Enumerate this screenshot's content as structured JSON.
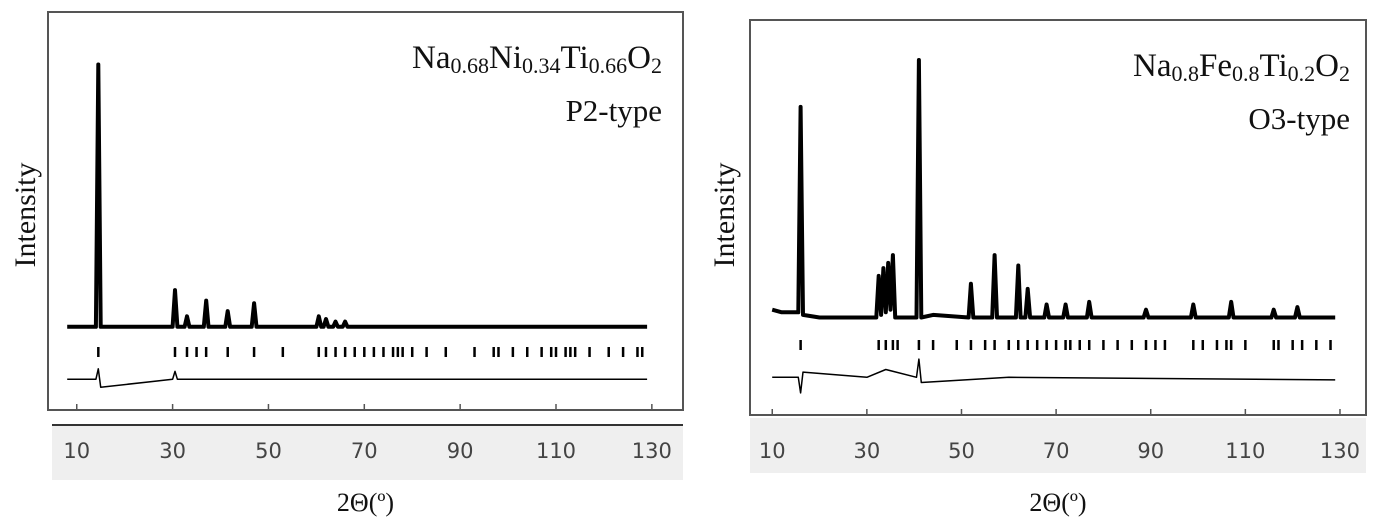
{
  "chart_data": [
    {
      "type": "line",
      "title": "Na0.68Ni0.34Ti0.66O2",
      "subtitle": "P2-type",
      "x_label": "2Θ(º)",
      "y_label": "Intensity",
      "xlim": [
        4,
        136.5
      ],
      "ylim": [
        -31.7,
        120
      ],
      "xticks": [
        10,
        30,
        50,
        70,
        90,
        110,
        130
      ],
      "color": "#000000",
      "x": [
        8,
        14,
        14.5,
        15,
        30,
        30.5,
        31,
        32.5,
        33,
        33.5,
        36.5,
        37,
        37.5,
        41,
        41.5,
        42,
        46.5,
        47,
        47.5,
        60,
        60.5,
        61,
        61.5,
        62,
        62.5,
        63.5,
        64,
        64.5,
        65.5,
        66,
        66.5,
        129
      ],
      "values": [
        0,
        0,
        100,
        0,
        0,
        14,
        0,
        0,
        4,
        0,
        0,
        10,
        0,
        0,
        6,
        0,
        0,
        9,
        0,
        0,
        4,
        0,
        0,
        3,
        0,
        0,
        2,
        0,
        0,
        2,
        0,
        0
      ],
      "reflections": [
        14.5,
        30.5,
        33,
        35,
        37,
        41.5,
        47,
        53,
        60.5,
        62,
        64,
        66,
        68,
        70,
        72,
        74,
        76,
        77,
        78,
        80,
        83,
        87,
        93,
        97,
        98,
        101,
        104,
        107,
        109,
        110,
        112,
        113,
        114,
        117,
        121,
        124,
        127,
        128
      ],
      "difference_x": [
        8,
        14,
        14.5,
        15,
        30,
        30.5,
        31,
        60,
        129
      ],
      "difference": [
        -20,
        -20,
        -16,
        -23,
        -20,
        -17,
        -20,
        -20,
        -20
      ]
    },
    {
      "type": "line",
      "title": "Na0.8Fe0.8Ti0.2O2",
      "subtitle": "O3-type",
      "x_label": "2Θ(º)",
      "y_label": "Intensity",
      "xlim": [
        5.3,
        135.5
      ],
      "ylim": [
        -36.5,
        115.4
      ],
      "xticks": [
        10,
        30,
        50,
        70,
        90,
        110,
        130
      ],
      "color": "#000000",
      "x": [
        10,
        12,
        15.5,
        16,
        16.5,
        20,
        32,
        32.5,
        33,
        33.5,
        34,
        34.5,
        35,
        35.5,
        36,
        40.5,
        41,
        41.5,
        44,
        51.5,
        52,
        52.5,
        56.5,
        57,
        57.5,
        61.5,
        62,
        62.5,
        63.5,
        64,
        64.5,
        67.5,
        68,
        68.5,
        71.5,
        72,
        72.5,
        76.5,
        77,
        77.5,
        88.5,
        89,
        89.5,
        98.5,
        99,
        99.5,
        106.5,
        107,
        107.5,
        115.5,
        116,
        116.5,
        120.5,
        121,
        121.5,
        129
      ],
      "values": [
        4,
        3,
        3,
        82,
        2,
        1,
        1,
        17,
        2,
        20,
        3,
        22,
        4,
        25,
        1,
        1,
        100,
        1,
        2,
        1,
        14,
        1,
        1,
        25,
        1,
        1,
        21,
        1,
        1,
        12,
        1,
        1,
        6,
        1,
        1,
        6,
        1,
        1,
        7,
        1,
        1,
        4,
        1,
        1,
        6,
        1,
        1,
        7,
        1,
        1,
        4,
        1,
        1,
        5,
        1,
        1
      ],
      "reflections": [
        16,
        32.5,
        34,
        35.5,
        36.5,
        41,
        44,
        49,
        52,
        55,
        57,
        60,
        62,
        64,
        66,
        68,
        70,
        72,
        73,
        75,
        77,
        80,
        83,
        86,
        89,
        91,
        93,
        99,
        101,
        104,
        106,
        107,
        110,
        116,
        117,
        120,
        122,
        125,
        128
      ],
      "difference_x": [
        10,
        15.5,
        16,
        16.5,
        30,
        34,
        40.5,
        41,
        41.5,
        60,
        129
      ],
      "difference": [
        -22,
        -22,
        -28,
        -20,
        -22,
        -19,
        -22,
        -15,
        -24,
        -22,
        -23
      ]
    }
  ]
}
